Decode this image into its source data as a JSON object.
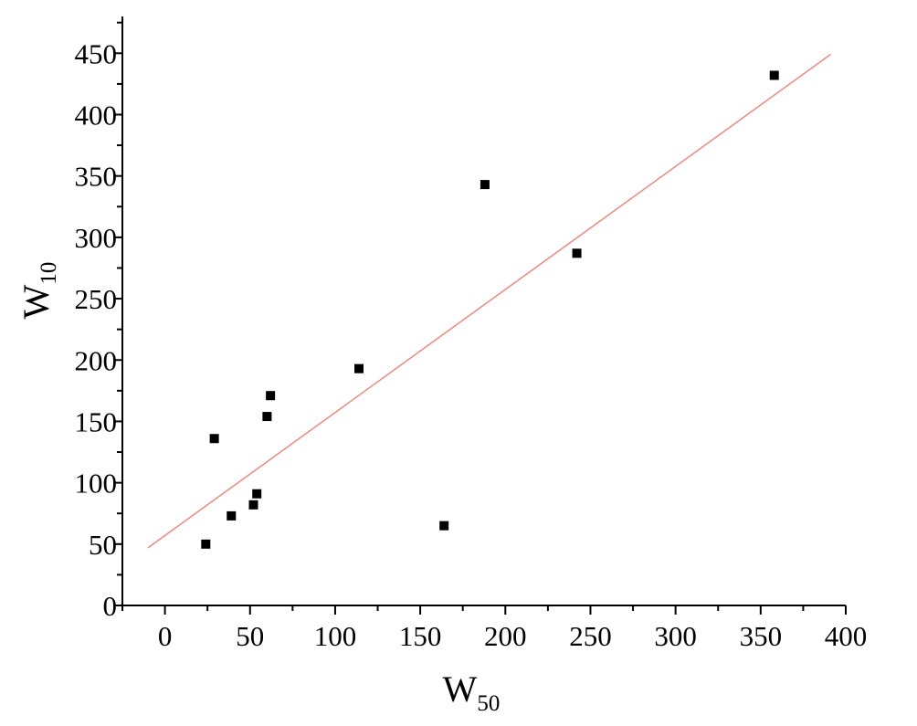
{
  "chart_data": {
    "type": "scatter",
    "title": "",
    "xlabel": {
      "main": "W",
      "sub": "50"
    },
    "ylabel": {
      "main": "W",
      "sub": "10"
    },
    "xlim": [
      -25,
      400
    ],
    "ylim": [
      0,
      480
    ],
    "xticks": [
      0,
      50,
      100,
      150,
      200,
      250,
      300,
      350,
      400
    ],
    "yticks": [
      0,
      50,
      100,
      150,
      200,
      250,
      300,
      350,
      400,
      450
    ],
    "grid": false,
    "legend": "none",
    "series": [
      {
        "marker": "square",
        "color": "#000000",
        "points": [
          {
            "x": 24,
            "y": 50
          },
          {
            "x": 29,
            "y": 136
          },
          {
            "x": 39,
            "y": 73
          },
          {
            "x": 52,
            "y": 82
          },
          {
            "x": 54,
            "y": 91
          },
          {
            "x": 60,
            "y": 154
          },
          {
            "x": 62,
            "y": 171
          },
          {
            "x": 114,
            "y": 193
          },
          {
            "x": 164,
            "y": 65
          },
          {
            "x": 188,
            "y": 343
          },
          {
            "x": 242,
            "y": 287
          },
          {
            "x": 358,
            "y": 432
          }
        ]
      }
    ],
    "fit_line": {
      "color": "#f08a80",
      "x": [
        -10,
        391
      ],
      "y": [
        47,
        449
      ]
    }
  }
}
